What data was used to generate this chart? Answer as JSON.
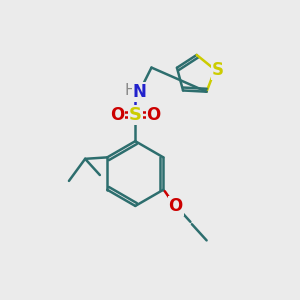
{
  "bg_color": "#ebebeb",
  "bond_color": "#2d6e6e",
  "S_color": "#cccc00",
  "N_color": "#2222cc",
  "O_color": "#cc0000",
  "bond_width": 1.8,
  "figsize": [
    3.0,
    3.0
  ],
  "dpi": 100,
  "xlim": [
    0,
    10
  ],
  "ylim": [
    0,
    10
  ]
}
